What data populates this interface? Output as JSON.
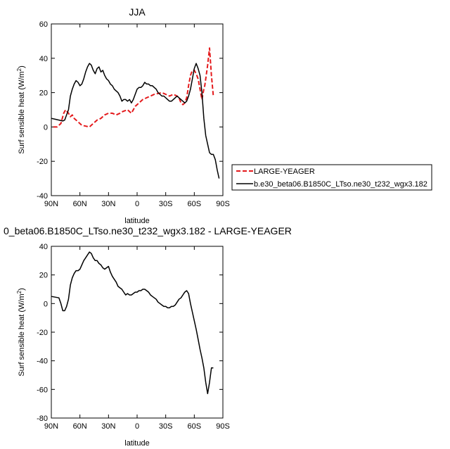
{
  "chart_data": [
    {
      "type": "line",
      "title": "JJA",
      "xlabel": "latitude",
      "ylabel": "Surf sensible heat (W/m²)",
      "ylabel_main": "Surf sensible heat (W/m",
      "ylabel_sup": "2",
      "ylabel_close": ")",
      "x_ticks": [
        {
          "value": 90,
          "label": "90N"
        },
        {
          "value": 60,
          "label": "60N"
        },
        {
          "value": 30,
          "label": "30N"
        },
        {
          "value": 0,
          "label": "0"
        },
        {
          "value": -30,
          "label": "30S"
        },
        {
          "value": -60,
          "label": "60S"
        },
        {
          "value": -90,
          "label": "90S"
        }
      ],
      "xlim": [
        90,
        -90
      ],
      "ylim": [
        -40,
        60
      ],
      "y_ticks": [
        -40,
        -20,
        0,
        20,
        40,
        60
      ],
      "grid": false,
      "legend_position": "right",
      "series": [
        {
          "name": "LARGE-YEAGER",
          "color": "#e41a1c",
          "dash": "dashed",
          "x": [
            88,
            84,
            80,
            77,
            75,
            72,
            70,
            68,
            66,
            62,
            58,
            54,
            50,
            46,
            42,
            38,
            34,
            30,
            26,
            22,
            18,
            15,
            10,
            6,
            2,
            -2,
            -6,
            -10,
            -14,
            -18,
            -22,
            -26,
            -30,
            -34,
            -38,
            -42,
            -44,
            -46,
            -48,
            -50,
            -52,
            -54,
            -56,
            -58,
            -60,
            -62,
            -64,
            -66,
            -68,
            -70,
            -71,
            -72,
            -74,
            -76,
            -78,
            -80
          ],
          "y": [
            0,
            0,
            2,
            8,
            10,
            8,
            6,
            7,
            5,
            3,
            1,
            0.5,
            0,
            2,
            4,
            5,
            7,
            8,
            8,
            7,
            8,
            9,
            10,
            8,
            12,
            14,
            16,
            17,
            18,
            19,
            19.5,
            20,
            19,
            18,
            19,
            18,
            17,
            14,
            13,
            14,
            17,
            24,
            30,
            33,
            33,
            31,
            28,
            22,
            16,
            22,
            24,
            28,
            36,
            46,
            30,
            18
          ]
        },
        {
          "name": "b.e30_beta06.B1850C_LTso.ne30_t232_wgx3.182",
          "color": "#000000",
          "dash": "solid",
          "x": [
            90,
            86,
            82,
            78,
            76,
            74,
            72,
            70,
            68,
            66,
            64,
            62,
            60,
            58,
            56,
            54,
            52,
            50,
            48,
            46,
            44,
            42,
            40,
            38,
            36,
            34,
            32,
            30,
            28,
            26,
            24,
            22,
            20,
            18,
            16,
            14,
            12,
            10,
            8,
            6,
            4,
            2,
            0,
            -2,
            -4,
            -6,
            -8,
            -10,
            -12,
            -14,
            -16,
            -18,
            -20,
            -22,
            -24,
            -26,
            -28,
            -30,
            -32,
            -34,
            -36,
            -38,
            -40,
            -42,
            -44,
            -46,
            -48,
            -50,
            -52,
            -54,
            -56,
            -58,
            -60,
            -62,
            -64,
            -66,
            -68,
            -70,
            -72,
            -74,
            -76,
            -78,
            -80,
            -82,
            -84,
            -86
          ],
          "y": [
            5,
            4.5,
            4,
            3.5,
            4,
            7,
            10,
            18,
            22,
            25,
            27,
            26,
            24,
            25,
            28,
            32,
            35,
            37,
            36,
            33,
            31,
            34,
            35,
            32,
            33,
            30,
            28,
            27,
            25,
            24,
            22,
            21,
            20,
            18,
            15,
            16,
            16,
            15,
            16,
            14,
            16,
            19,
            22,
            23,
            23,
            24,
            26,
            25,
            25,
            24,
            24,
            23,
            22,
            20,
            19,
            18,
            18,
            17,
            16,
            15,
            15,
            16,
            17,
            18,
            17,
            16,
            15,
            14,
            15,
            18,
            22,
            28,
            34,
            37,
            34,
            30,
            20,
            5,
            -5,
            -10,
            -15,
            -16,
            -16,
            -19,
            -25,
            -30
          ]
        }
      ]
    },
    {
      "type": "line",
      "title": "0_beta06.B1850C_LTso.ne30_t232_wgx3.182 - LARGE-YEAGER",
      "xlabel": "latitude",
      "ylabel": "Surf sensible heat (W/m²)",
      "ylabel_main": "Surf sensible heat (W/m",
      "ylabel_sup": "2",
      "ylabel_close": ")",
      "x_ticks": [
        {
          "value": 90,
          "label": "90N"
        },
        {
          "value": 60,
          "label": "60N"
        },
        {
          "value": 30,
          "label": "30N"
        },
        {
          "value": 0,
          "label": "0"
        },
        {
          "value": -30,
          "label": "30S"
        },
        {
          "value": -60,
          "label": "60S"
        },
        {
          "value": -90,
          "label": "90S"
        }
      ],
      "xlim": [
        90,
        -90
      ],
      "ylim": [
        -80,
        40
      ],
      "y_ticks": [
        -80,
        -60,
        -40,
        -20,
        0,
        20,
        40
      ],
      "grid": false,
      "series": [
        {
          "color": "#000000",
          "dash": "solid",
          "x": [
            90,
            86,
            82,
            80,
            78,
            76,
            74,
            72,
            70,
            68,
            66,
            64,
            62,
            60,
            58,
            56,
            54,
            52,
            50,
            48,
            46,
            44,
            42,
            40,
            38,
            36,
            34,
            32,
            30,
            28,
            26,
            24,
            22,
            20,
            18,
            16,
            14,
            12,
            10,
            8,
            6,
            4,
            2,
            0,
            -2,
            -4,
            -6,
            -8,
            -10,
            -12,
            -14,
            -16,
            -18,
            -20,
            -22,
            -24,
            -26,
            -28,
            -30,
            -32,
            -34,
            -36,
            -38,
            -40,
            -42,
            -44,
            -46,
            -48,
            -50,
            -52,
            -54,
            -56,
            -58,
            -60,
            -62,
            -64,
            -66,
            -68,
            -70,
            -72,
            -74,
            -76,
            -78,
            -80
          ],
          "y": [
            5,
            4.5,
            4,
            0,
            -5,
            -5,
            -2,
            3,
            13,
            18,
            21,
            23,
            23,
            24,
            27,
            30,
            32,
            34,
            36,
            35,
            32,
            30,
            30,
            28,
            27,
            25,
            24,
            25,
            26,
            22,
            19,
            17,
            15,
            12,
            11,
            10,
            8,
            6,
            7,
            6,
            6,
            7,
            8,
            8,
            9,
            9,
            10,
            10,
            9,
            8,
            6,
            5,
            4,
            3,
            1,
            0,
            -1,
            -2,
            -2,
            -3,
            -3,
            -2,
            -2,
            -1,
            1,
            3,
            4,
            6,
            8,
            9,
            7,
            0,
            -6,
            -12,
            -18,
            -25,
            -32,
            -38,
            -45,
            -55,
            -63,
            -55,
            -45,
            -45
          ]
        }
      ]
    }
  ],
  "legend": {
    "entries": [
      {
        "label": "LARGE-YEAGER",
        "color": "#e41a1c",
        "dash": "dashed"
      },
      {
        "label": "b.e30_beta06.B1850C_LTso.ne30_t232_wgx3.182",
        "color": "#000000",
        "dash": "solid"
      }
    ]
  }
}
